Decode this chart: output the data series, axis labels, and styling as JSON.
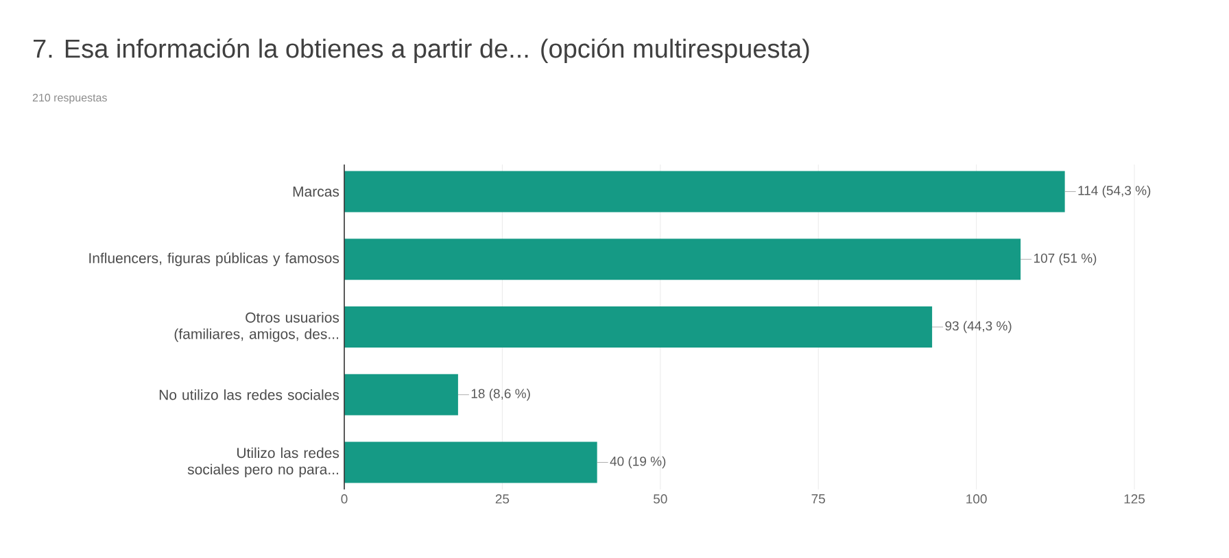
{
  "chart_data": {
    "type": "bar",
    "orientation": "horizontal",
    "title": "7. Esa información la obtienes a partir de... (opción multirespuesta)",
    "subtitle": "210 respuestas",
    "categories": [
      "Marcas",
      "Influencers, figuras públicas y famosos",
      "Otros usuarios (familiares, amigos, des...",
      "No utilizo las redes sociales",
      "Utilizo las redes sociales pero no para..."
    ],
    "values": [
      114,
      107,
      93,
      18,
      40
    ],
    "value_labels": [
      "114 (54,3 %)",
      "107 (51 %)",
      "93 (44,3 %)",
      "18 (8,6 %)",
      "40 (19 %)"
    ],
    "color": "#159a85",
    "xlim": [
      0,
      125
    ],
    "xticks": [
      0,
      25,
      50,
      75,
      100,
      125
    ],
    "grid": "x"
  }
}
